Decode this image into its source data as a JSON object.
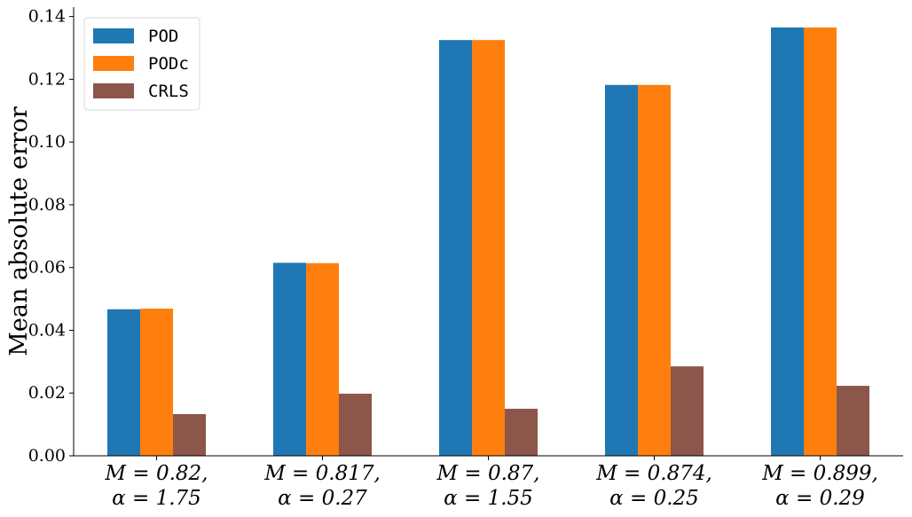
{
  "chart_data": {
    "type": "bar",
    "title": "",
    "xlabel": "",
    "ylabel": "Mean absolute error",
    "ylim": [
      0,
      0.143
    ],
    "yticks": [
      0.0,
      0.02,
      0.04,
      0.06,
      0.08,
      0.1,
      0.12,
      0.14
    ],
    "ytick_labels": [
      "0.00",
      "0.02",
      "0.04",
      "0.06",
      "0.08",
      "0.10",
      "0.12",
      "0.14"
    ],
    "categories": [
      [
        "M = 0.82,",
        "α = 1.75"
      ],
      [
        "M = 0.817,",
        "α = 0.27"
      ],
      [
        "M = 0.87,",
        "α = 1.55"
      ],
      [
        "M = 0.874,",
        "α = 0.25"
      ],
      [
        "M = 0.899,",
        "α = 0.29"
      ]
    ],
    "series": [
      {
        "name": "POD",
        "color": "#1f77b4",
        "values": [
          0.0467,
          0.0615,
          0.1325,
          0.1182,
          0.1365
        ]
      },
      {
        "name": "PODc",
        "color": "#ff7f0e",
        "values": [
          0.0469,
          0.0614,
          0.1325,
          0.1182,
          0.1365
        ]
      },
      {
        "name": "CRLS",
        "color": "#8c564b",
        "values": [
          0.0133,
          0.0198,
          0.015,
          0.0285,
          0.0223
        ]
      }
    ],
    "grid": false,
    "legend": {
      "position": "top-left"
    }
  }
}
